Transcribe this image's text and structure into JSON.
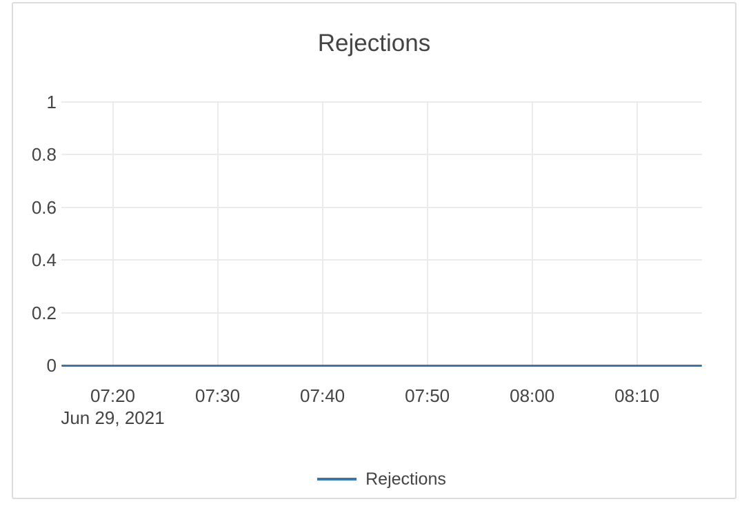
{
  "colors": {
    "text": "#444444",
    "grid": "#ebebeb",
    "card_border": "#dcdcdc",
    "background": "#ffffff",
    "series_blue": "#3a76ad"
  },
  "chart_data": {
    "type": "line",
    "title": "Rejections",
    "xlabel": "",
    "ylabel": "",
    "grid": true,
    "x_axis": {
      "tick_labels": [
        "07:20",
        "07:30",
        "07:40",
        "07:50",
        "08:00",
        "08:10"
      ],
      "tick_minutes": [
        20,
        30,
        40,
        50,
        60,
        70
      ],
      "range_minutes": [
        15.1,
        76.2
      ],
      "date_label": "Jun 29, 2021",
      "date_label_under_tick": "07:20"
    },
    "y_axis": {
      "tick_labels": [
        "0",
        "0.2",
        "0.4",
        "0.6",
        "0.8",
        "1"
      ],
      "tick_values": [
        0,
        0.2,
        0.4,
        0.6,
        0.8,
        1
      ],
      "range": [
        0,
        1
      ]
    },
    "legend": {
      "position": "bottom-center",
      "entries": [
        "Rejections"
      ]
    },
    "series": [
      {
        "name": "Rejections",
        "color": "#3a76ad",
        "x_minutes": [
          15.1,
          76.2
        ],
        "y": [
          0,
          0
        ]
      }
    ]
  }
}
